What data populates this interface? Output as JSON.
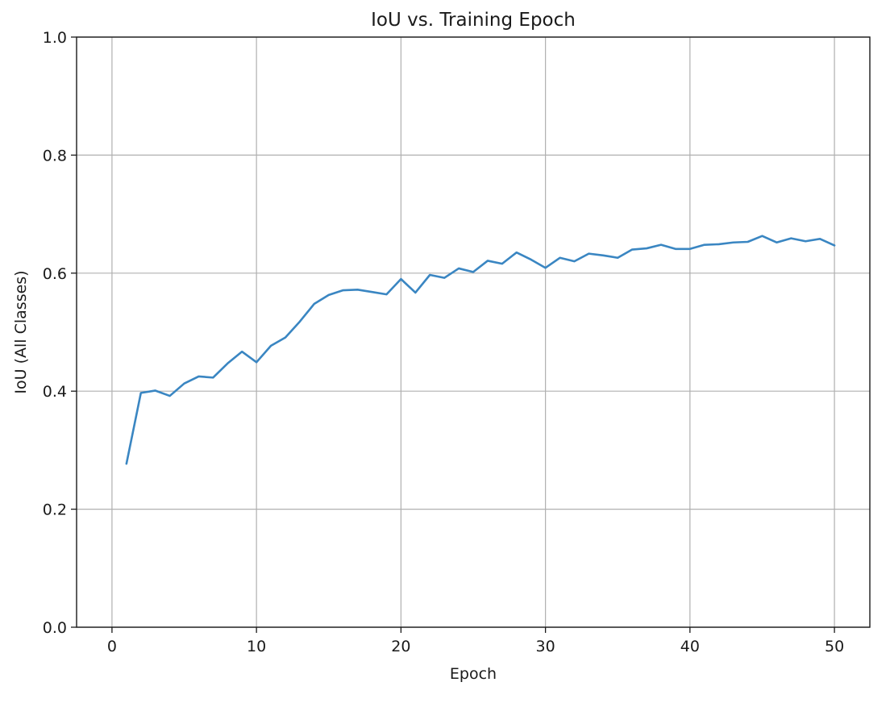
{
  "chart_data": {
    "type": "line",
    "title": "IoU vs. Training Epoch",
    "xlabel": "Epoch",
    "ylabel": "IoU (All Classes)",
    "xlim": [
      -2.45,
      52.45
    ],
    "ylim": [
      0.0,
      1.0
    ],
    "xticks": [
      0,
      10,
      20,
      30,
      40,
      50
    ],
    "yticks": [
      0.0,
      0.2,
      0.4,
      0.6,
      0.8,
      1.0
    ],
    "xtick_labels": [
      "0",
      "10",
      "20",
      "30",
      "40",
      "50"
    ],
    "ytick_labels": [
      "0.0",
      "0.2",
      "0.4",
      "0.6",
      "0.8",
      "1.0"
    ],
    "grid": true,
    "color": "#3a86c2",
    "series": [
      {
        "x": [
          1,
          2,
          3,
          4,
          5,
          6,
          7,
          8,
          9,
          10,
          11,
          12,
          13,
          14,
          15,
          16,
          17,
          18,
          19,
          20,
          21,
          22,
          23,
          24,
          25,
          26,
          27,
          28,
          29,
          30,
          31,
          32,
          33,
          34,
          35,
          36,
          37,
          38,
          39,
          40,
          41,
          42,
          43,
          44,
          45,
          46,
          47,
          48,
          49,
          50
        ],
        "values": [
          0.277,
          0.397,
          0.401,
          0.392,
          0.413,
          0.425,
          0.423,
          0.447,
          0.467,
          0.449,
          0.477,
          0.491,
          0.518,
          0.548,
          0.563,
          0.571,
          0.572,
          0.568,
          0.564,
          0.59,
          0.567,
          0.597,
          0.592,
          0.608,
          0.602,
          0.621,
          0.616,
          0.635,
          0.623,
          0.609,
          0.626,
          0.62,
          0.633,
          0.63,
          0.626,
          0.64,
          0.642,
          0.648,
          0.641,
          0.641,
          0.648,
          0.649,
          0.652,
          0.653,
          0.663,
          0.652,
          0.659,
          0.654,
          0.658,
          0.647
        ]
      }
    ]
  }
}
